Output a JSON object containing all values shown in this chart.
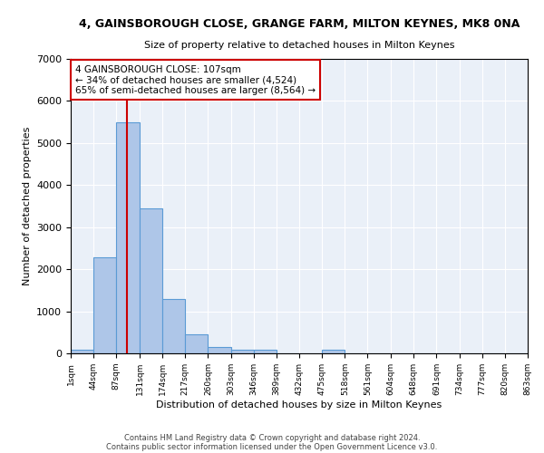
{
  "title1": "4, GAINSBOROUGH CLOSE, GRANGE FARM, MILTON KEYNES, MK8 0NA",
  "title2": "Size of property relative to detached houses in Milton Keynes",
  "xlabel": "Distribution of detached houses by size in Milton Keynes",
  "ylabel": "Number of detached properties",
  "bin_edges": [
    1,
    44,
    87,
    131,
    174,
    217,
    260,
    303,
    346,
    389,
    432,
    475,
    518,
    561,
    604,
    648,
    691,
    734,
    777,
    820,
    863
  ],
  "bar_heights": [
    80,
    2280,
    5500,
    3450,
    1300,
    450,
    150,
    80,
    80,
    0,
    0,
    80,
    0,
    0,
    0,
    0,
    0,
    0,
    0,
    0
  ],
  "bar_color": "#aec6e8",
  "bar_edge_color": "#5b9bd5",
  "property_size": 107,
  "red_line_color": "#cc0000",
  "ylim": [
    0,
    7000
  ],
  "annotation_line1": "4 GAINSBOROUGH CLOSE: 107sqm",
  "annotation_line2": "← 34% of detached houses are smaller (4,524)",
  "annotation_line3": "65% of semi-detached houses are larger (8,564) →",
  "annotation_box_color": "#ffffff",
  "annotation_border_color": "#cc0000",
  "footer1": "Contains HM Land Registry data © Crown copyright and database right 2024.",
  "footer2": "Contains public sector information licensed under the Open Government Licence v3.0.",
  "background_color": "#eaf0f8",
  "tick_labels": [
    "1sqm",
    "44sqm",
    "87sqm",
    "131sqm",
    "174sqm",
    "217sqm",
    "260sqm",
    "303sqm",
    "346sqm",
    "389sqm",
    "432sqm",
    "475sqm",
    "518sqm",
    "561sqm",
    "604sqm",
    "648sqm",
    "691sqm",
    "734sqm",
    "777sqm",
    "820sqm",
    "863sqm"
  ],
  "title1_fontsize": 9,
  "title2_fontsize": 8,
  "ylabel_fontsize": 8,
  "xlabel_fontsize": 8,
  "tick_fontsize": 6.5,
  "annotation_fontsize": 7.5
}
